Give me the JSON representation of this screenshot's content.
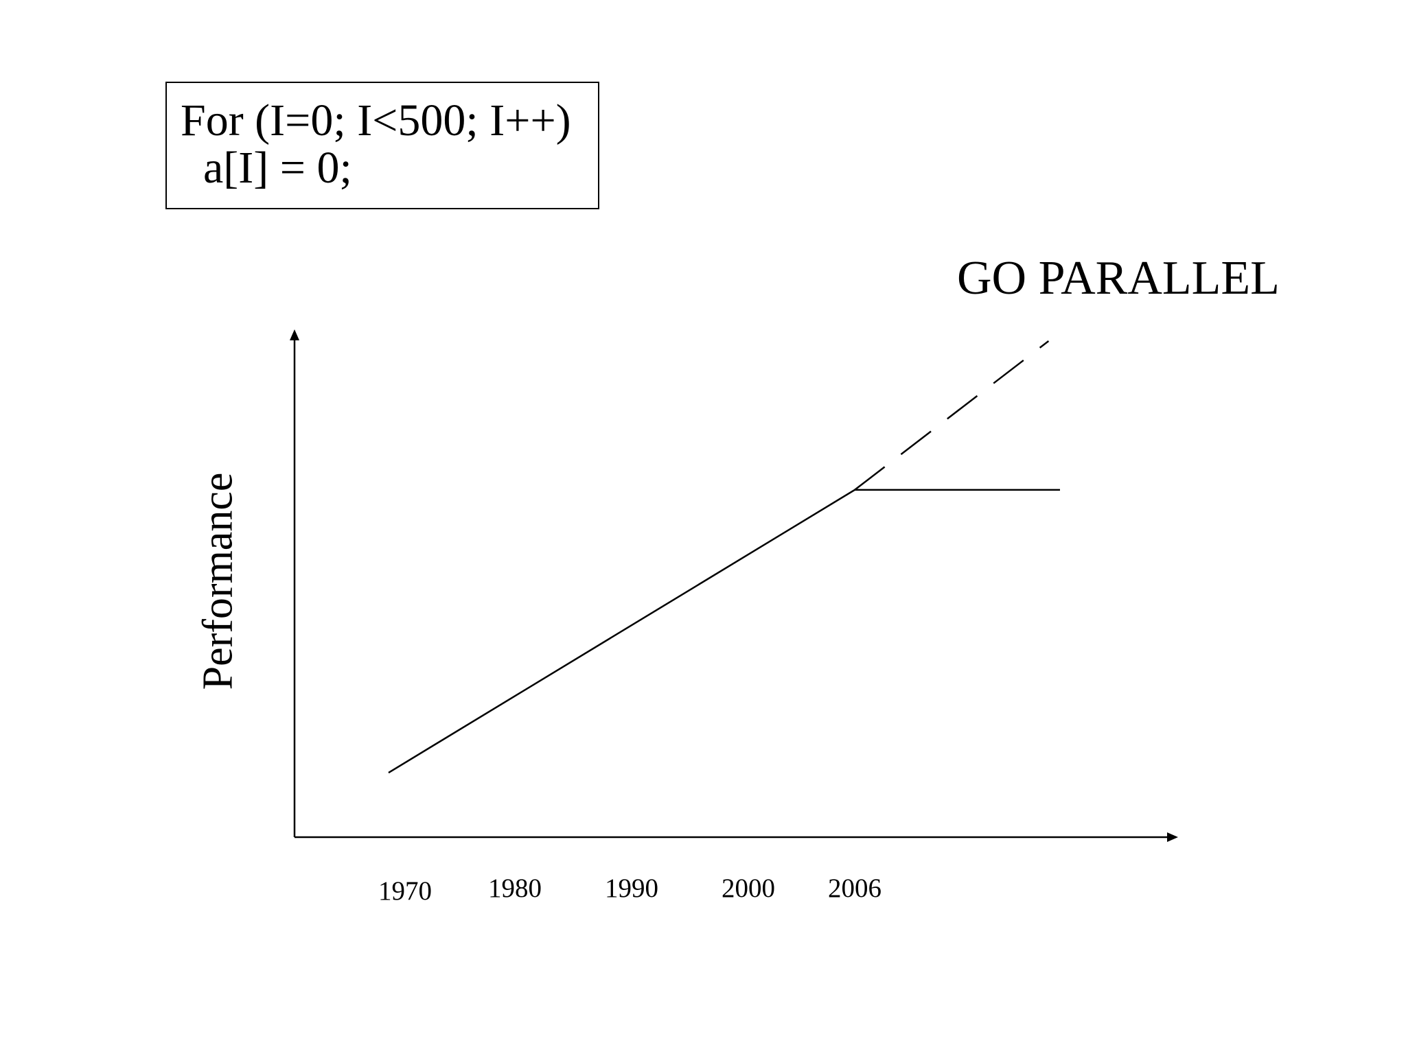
{
  "code": {
    "line1": "For (I=0; I<500; I++)",
    "line2": "  a[I] = 0;"
  },
  "annotation": "GO PARALLEL",
  "chart_data": {
    "type": "line",
    "ylabel": "Performance",
    "xlabel": "",
    "x_ticks": [
      "1970",
      "1980",
      "1990",
      "2000",
      "2006"
    ],
    "series": [
      {
        "style": "solid",
        "points": [
          {
            "x": 1968.5,
            "y": 13
          },
          {
            "x": 2006,
            "y": 70
          },
          {
            "x": 2024,
            "y": 70
          }
        ]
      },
      {
        "style": "dashed",
        "points": [
          {
            "x": 2006,
            "y": 70
          },
          {
            "x": 2023,
            "y": 100
          }
        ]
      }
    ],
    "ylim": [
      0,
      100
    ],
    "grid": false,
    "colors": {
      "line": "#000000",
      "axis": "#000000"
    }
  }
}
